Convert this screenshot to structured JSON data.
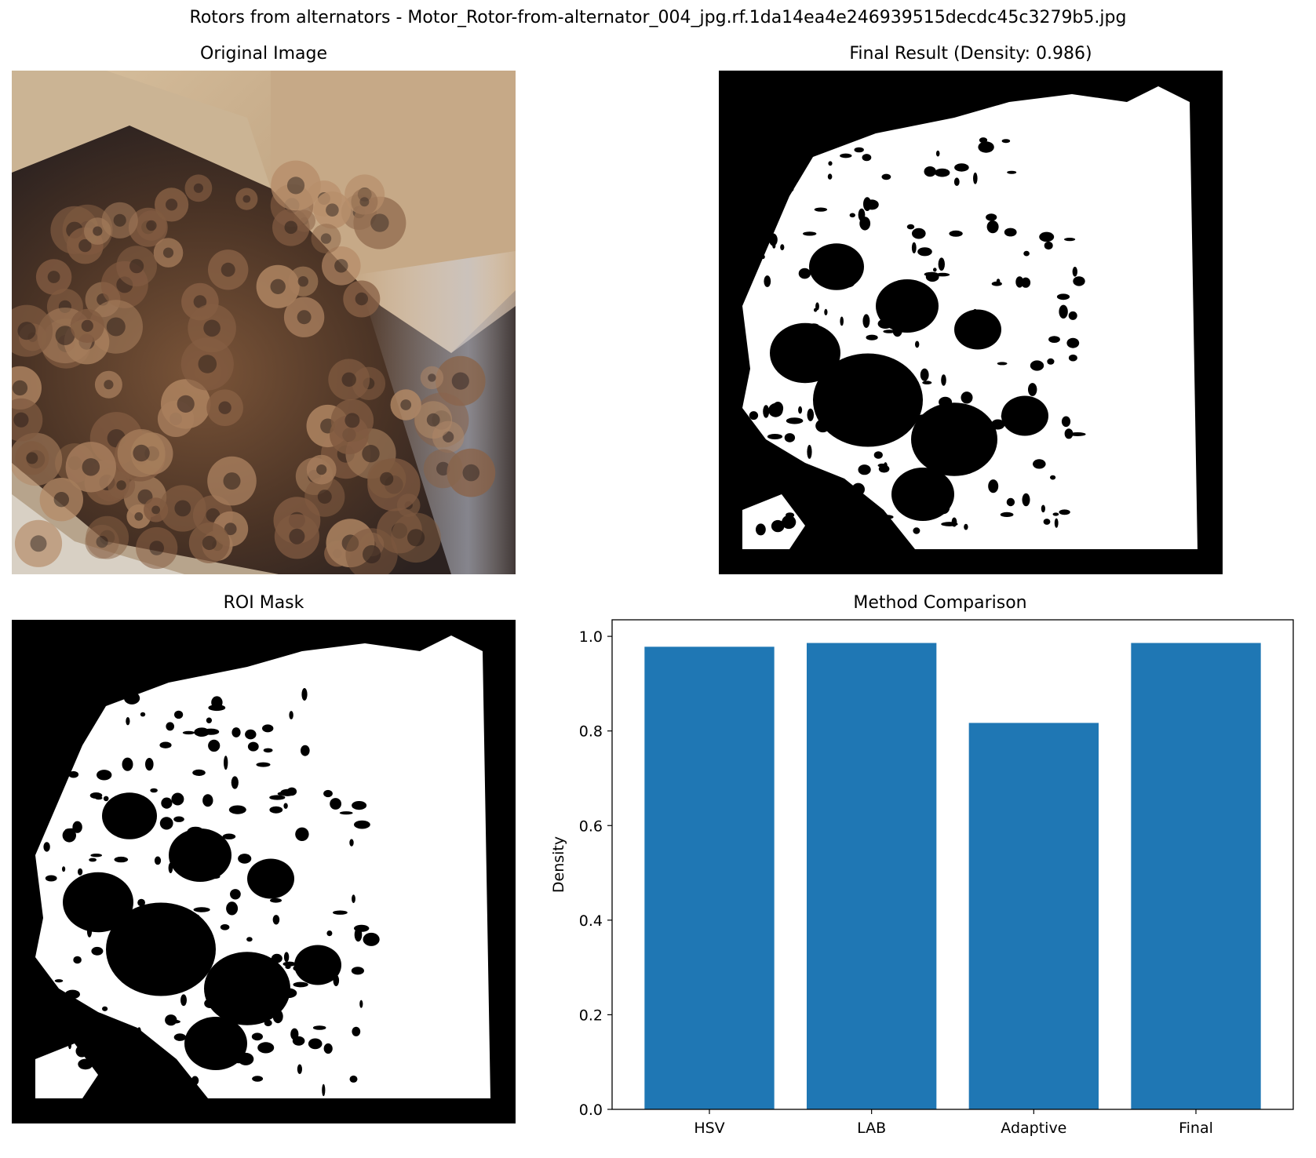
{
  "figure": {
    "suptitle": "Rotors from alternators - Motor_Rotor-from-alternator_004_jpg.rf.1da14ea4e246939515decdc45c3279b5.jpg"
  },
  "panels": {
    "original": {
      "title": "Original Image"
    },
    "final": {
      "title": "Final Result (Density: 0.986)"
    },
    "roi": {
      "title": "ROI Mask"
    },
    "comparison": {
      "title": "Method Comparison"
    }
  },
  "chart_data": {
    "type": "bar",
    "title": "Method Comparison",
    "xlabel": "",
    "ylabel": "Density",
    "categories": [
      "HSV",
      "LAB",
      "Adaptive",
      "Final"
    ],
    "values": [
      0.978,
      0.986,
      0.817,
      0.986
    ],
    "ylim": [
      0,
      1.035
    ],
    "yticks": [
      "0.0",
      "0.2",
      "0.4",
      "0.6",
      "0.8",
      "1.0"
    ],
    "bar_color": "#1f77b4",
    "grid": false
  },
  "colors": {
    "mask_background": "#000000",
    "mask_foreground": "#ffffff",
    "photo_cardboard": "#c9ab86",
    "photo_rotor": "#6d4a33"
  }
}
